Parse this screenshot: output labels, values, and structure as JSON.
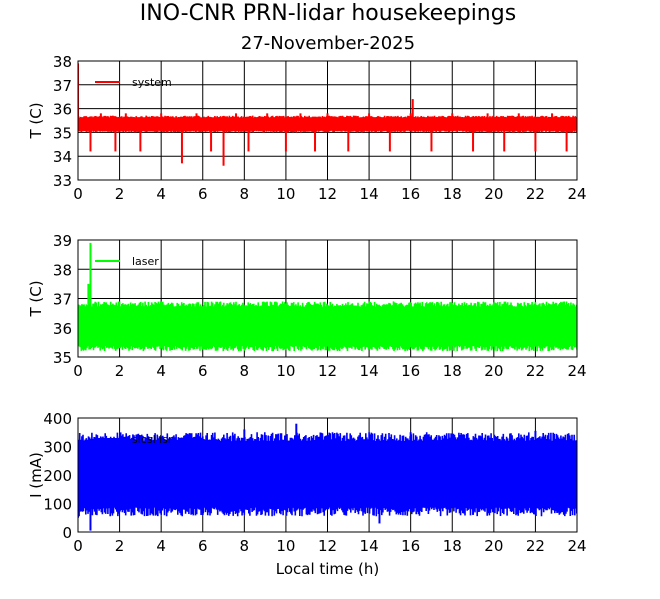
{
  "title": "INO-CNR PRN-lidar housekeepings",
  "subtitle": "27-November-2025",
  "chart_data": [
    {
      "type": "line",
      "ylabel": "T (C)",
      "xlabel": "",
      "xlim": [
        0,
        24
      ],
      "ylim": [
        33,
        38
      ],
      "xticks": [
        "0",
        "2",
        "4",
        "6",
        "8",
        "10",
        "12",
        "14",
        "16",
        "18",
        "20",
        "22",
        "24"
      ],
      "yticks": [
        "33",
        "34",
        "35",
        "36",
        "37",
        "38"
      ],
      "grid": true,
      "legend_position": "top-left",
      "series": [
        {
          "name": "system",
          "color": "#ff0000",
          "base_low": 35.0,
          "base_high": 35.7,
          "x": [
            0.0,
            0.0,
            0.05,
            0.6,
            1.1,
            1.8,
            2.3,
            3.0,
            4.0,
            5.0,
            5.7,
            6.4,
            7.0,
            7.6,
            8.2,
            9.1,
            10.0,
            10.7,
            11.4,
            12.0,
            13.0,
            14.0,
            15.0,
            16.0,
            16.1,
            17.0,
            18.0,
            19.0,
            19.7,
            20.5,
            21.2,
            22.0,
            22.8,
            23.5,
            24.0
          ],
          "y": [
            36.6,
            37.9,
            35.6,
            34.2,
            35.8,
            34.2,
            35.8,
            34.2,
            35.8,
            33.7,
            35.8,
            34.2,
            33.6,
            35.8,
            34.2,
            35.8,
            34.2,
            35.8,
            34.2,
            35.8,
            34.2,
            35.8,
            34.2,
            35.8,
            36.4,
            34.2,
            35.8,
            34.2,
            35.8,
            34.2,
            35.8,
            34.2,
            35.8,
            34.2,
            35.0
          ]
        }
      ]
    },
    {
      "type": "line",
      "ylabel": "T (C)",
      "xlabel": "",
      "xlim": [
        0,
        24
      ],
      "ylim": [
        35,
        39
      ],
      "xticks": [
        "0",
        "2",
        "4",
        "6",
        "8",
        "10",
        "12",
        "14",
        "16",
        "18",
        "20",
        "22",
        "24"
      ],
      "yticks": [
        "35",
        "36",
        "37",
        "38",
        "39"
      ],
      "grid": true,
      "legend_position": "top-left",
      "series": [
        {
          "name": "laser",
          "color": "#00ff00",
          "base_low": 35.2,
          "base_high": 36.9,
          "x": [
            0.0,
            0.3,
            0.5,
            0.6,
            0.75,
            1.0,
            3.0,
            6.0,
            9.0,
            12.0,
            15.0,
            18.0,
            21.0,
            24.0
          ],
          "y": [
            36.0,
            36.3,
            37.5,
            38.9,
            36.5,
            36.0,
            36.1,
            36.0,
            36.1,
            36.0,
            36.1,
            36.0,
            36.1,
            36.0
          ]
        }
      ]
    },
    {
      "type": "line",
      "ylabel": "I (mA)",
      "xlabel": "Local time (h)",
      "xlim": [
        0,
        24
      ],
      "ylim": [
        0,
        400
      ],
      "xticks": [
        "0",
        "2",
        "4",
        "6",
        "8",
        "10",
        "12",
        "14",
        "16",
        "18",
        "20",
        "22",
        "24"
      ],
      "yticks": [
        "0",
        "100",
        "200",
        "300",
        "400"
      ],
      "grid": true,
      "legend_position": "top-left",
      "series": [
        {
          "name": "slcsl lsr",
          "color": "#0000ff",
          "base_low": 55,
          "base_high": 350,
          "x": [
            0.0,
            0.6,
            3.0,
            6.0,
            8.0,
            10.5,
            12.0,
            14.5,
            16.0,
            19.0,
            22.0,
            24.0
          ],
          "y": [
            50,
            5,
            340,
            60,
            360,
            380,
            340,
            30,
            350,
            60,
            355,
            65
          ]
        }
      ]
    }
  ]
}
